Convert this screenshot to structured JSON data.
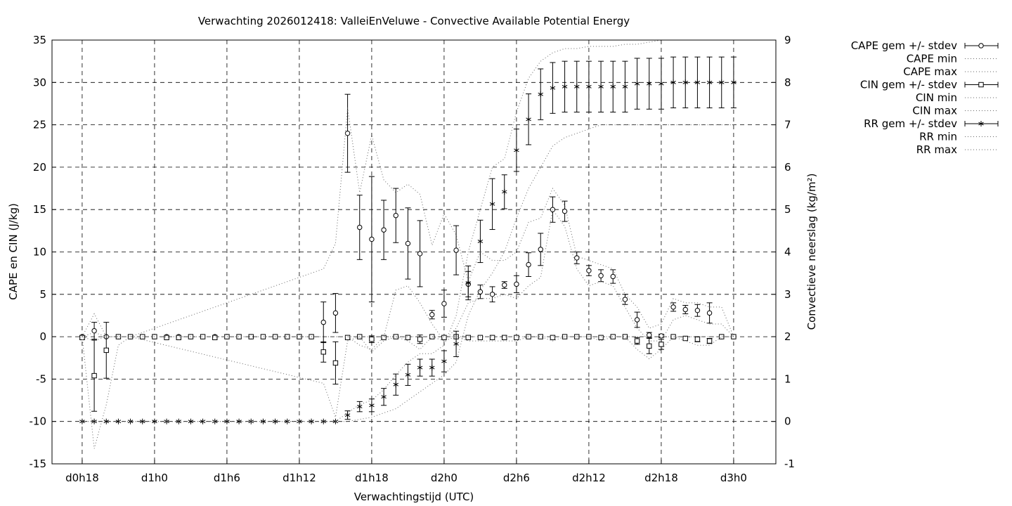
{
  "chart_data": {
    "type": "line",
    "title": "Verwachting 2026012418: ValleiEnVeluwe - Convective Available Potential Energy",
    "xlabel": "Verwachtingstijd (UTC)",
    "ylabel": "CAPE en CIN (J/kg)",
    "y2label": "Convectieve neerslag (kg/m²)",
    "x_ticks": [
      "d0h18",
      "d1h0",
      "d1h6",
      "d1h12",
      "d1h18",
      "d2h0",
      "d2h6",
      "d2h12",
      "d2h18",
      "d3h0"
    ],
    "x_unit": "hours since d0h0",
    "xlim": [
      15.5,
      75.5
    ],
    "ylim": [
      -15,
      35
    ],
    "y2lim": [
      -1,
      9
    ],
    "y_ticks": [
      "-15",
      "-10",
      "-5",
      "0",
      "5",
      "10",
      "15",
      "20",
      "25",
      "30",
      "35"
    ],
    "y2_ticks": [
      "-1",
      "0",
      "1",
      "2",
      "3",
      "4",
      "5",
      "6",
      "7",
      "8",
      "9"
    ],
    "grid": true,
    "legend_position": "outside-right",
    "legend": [
      "CAPE gem +/- stdev",
      "CAPE min",
      "CAPE max",
      "CIN gem +/- stdev",
      "CIN min",
      "CIN max",
      "RR gem +/- stdev",
      "RR min",
      "RR max"
    ],
    "series": [
      {
        "name": "CAPE gem +/- stdev",
        "axis": "y",
        "marker": "circle",
        "x": [
          18,
          19,
          20,
          21,
          22,
          23,
          24,
          25,
          26,
          27,
          28,
          29,
          30,
          31,
          32,
          33,
          34,
          35,
          36,
          37,
          38,
          39,
          40,
          41,
          42,
          43,
          44,
          45,
          46,
          47,
          48,
          49,
          50,
          51,
          52,
          53,
          54,
          55,
          56,
          57,
          58,
          59,
          60,
          61,
          62,
          63,
          64,
          65,
          66,
          67,
          68,
          69,
          70,
          71,
          72
        ],
        "values": [
          0,
          0.7,
          0,
          0,
          0,
          0,
          0,
          0,
          0,
          0,
          0,
          0,
          0,
          0,
          0,
          0,
          0,
          0,
          0,
          0,
          1.7,
          2.8,
          24,
          12.9,
          11.5,
          12.6,
          14.3,
          11,
          9.8,
          2.6,
          3.9,
          10.2,
          6.2,
          5.3,
          5,
          6.1,
          6.2,
          8.5,
          10.3,
          15,
          14.8,
          9.3,
          7.8,
          7.2,
          7.1,
          4.4,
          2,
          0.2,
          0.1,
          3.5,
          3.2,
          3.1,
          2.8,
          0,
          0
        ],
        "err": [
          0,
          1,
          0,
          0,
          0,
          0,
          0,
          0,
          0,
          0,
          0,
          0,
          0,
          0,
          0,
          0,
          0,
          0,
          0,
          0,
          2.4,
          2.3,
          4.6,
          3.8,
          7.4,
          3.5,
          3.2,
          4.2,
          3.9,
          0.5,
          1.6,
          2.9,
          1.5,
          0.8,
          0.9,
          0.4,
          1,
          1.4,
          1.9,
          1.5,
          1.2,
          0.7,
          0.6,
          0.7,
          0.8,
          0.6,
          0.9,
          0.3,
          0.2,
          0.5,
          0.5,
          0.7,
          1.2,
          0,
          0
        ]
      },
      {
        "name": "CIN gem +/- stdev",
        "axis": "y",
        "marker": "square",
        "x": [
          18,
          19,
          20,
          21,
          22,
          23,
          24,
          25,
          26,
          27,
          28,
          29,
          30,
          31,
          32,
          33,
          34,
          35,
          36,
          37,
          38,
          39,
          40,
          41,
          42,
          43,
          44,
          45,
          46,
          47,
          48,
          49,
          50,
          51,
          52,
          53,
          54,
          55,
          56,
          57,
          58,
          59,
          60,
          61,
          62,
          63,
          64,
          65,
          66,
          67,
          68,
          69,
          70,
          71,
          72
        ],
        "values": [
          -0.1,
          -4.6,
          -1.6,
          0,
          0,
          0,
          0,
          -0.1,
          -0.1,
          0,
          0,
          -0.1,
          0,
          0,
          0,
          0,
          0,
          0,
          0,
          0,
          -1.8,
          -3.1,
          -0.1,
          0,
          -0.3,
          -0.1,
          0,
          -0.1,
          -0.3,
          0,
          -0.1,
          0,
          -0.1,
          -0.1,
          -0.1,
          -0.1,
          -0.1,
          0,
          0,
          -0.1,
          0,
          0,
          0,
          -0.1,
          0,
          0,
          -0.5,
          -1.1,
          -0.9,
          0,
          -0.2,
          -0.3,
          -0.5,
          0,
          0
        ],
        "err": [
          0.2,
          4.2,
          3.3,
          0,
          0,
          0,
          0,
          0,
          0,
          0,
          0,
          0,
          0,
          0,
          0,
          0,
          0,
          0,
          0,
          0,
          1.2,
          2.5,
          0,
          0,
          0.4,
          0,
          0,
          0,
          0.5,
          0,
          0,
          0,
          0,
          0,
          0,
          0,
          0,
          0,
          0,
          0,
          0,
          0,
          0,
          0,
          0,
          0,
          0.4,
          0.9,
          0.6,
          0,
          0,
          0.3,
          0.3,
          0,
          0
        ]
      },
      {
        "name": "RR gem +/- stdev",
        "axis": "y2",
        "marker": "star",
        "x": [
          18,
          19,
          20,
          21,
          22,
          23,
          24,
          25,
          26,
          27,
          28,
          29,
          30,
          31,
          32,
          33,
          34,
          35,
          36,
          37,
          38,
          39,
          40,
          41,
          42,
          43,
          44,
          45,
          46,
          47,
          48,
          49,
          50,
          51,
          52,
          53,
          54,
          55,
          56,
          57,
          58,
          59,
          60,
          61,
          62,
          63,
          64,
          65,
          66,
          67,
          68,
          69,
          70,
          71,
          72
        ],
        "values": [
          0,
          0,
          0,
          0,
          0,
          0,
          0,
          0,
          0,
          0,
          0,
          0,
          0,
          0,
          0,
          0,
          0,
          0,
          0,
          0,
          0,
          0,
          0.15,
          0.35,
          0.38,
          0.58,
          0.87,
          1.1,
          1.27,
          1.27,
          1.42,
          1.83,
          3.27,
          4.25,
          5.13,
          5.42,
          6.4,
          7.13,
          7.72,
          7.87,
          7.9,
          7.9,
          7.9,
          7.9,
          7.9,
          7.9,
          7.97,
          7.97,
          7.97,
          8,
          8,
          8,
          8,
          8,
          8
        ],
        "err": [
          0,
          0,
          0,
          0,
          0,
          0,
          0,
          0,
          0,
          0,
          0,
          0,
          0,
          0,
          0,
          0,
          0,
          0,
          0,
          0,
          0,
          0,
          0.1,
          0.12,
          0.15,
          0.2,
          0.25,
          0.25,
          0.2,
          0.2,
          0.25,
          0.3,
          0.4,
          0.5,
          0.6,
          0.4,
          0.5,
          0.6,
          0.6,
          0.6,
          0.6,
          0.6,
          0.6,
          0.6,
          0.6,
          0.6,
          0.6,
          0.6,
          0.6,
          0.6,
          0.6,
          0.6,
          0.6,
          0.6,
          0.6
        ]
      },
      {
        "name": "CAPE max",
        "axis": "y",
        "style": "dotted",
        "x": [
          18,
          19,
          20,
          21,
          22,
          38,
          39,
          40,
          41,
          42,
          43,
          44,
          45,
          46,
          47,
          48,
          49,
          50,
          51,
          52,
          53,
          54,
          55,
          56,
          57,
          58,
          59,
          60,
          61,
          62,
          63,
          64,
          65,
          66,
          67,
          68,
          69,
          70,
          71,
          72
        ],
        "values": [
          0,
          2.7,
          0,
          0,
          0,
          8,
          11,
          27,
          17,
          23.8,
          18.5,
          17,
          18,
          16.8,
          10.8,
          14.5,
          12,
          6.5,
          10,
          9,
          9,
          10,
          13.5,
          14,
          17.5,
          15.5,
          9.5,
          9,
          8.5,
          8,
          5,
          3.5,
          1,
          1.5,
          4.5,
          4,
          4,
          3.5,
          3.5,
          0
        ]
      },
      {
        "name": "CAPE min",
        "axis": "y",
        "style": "dotted",
        "x": [
          18,
          19,
          20,
          21,
          22,
          38,
          39,
          40,
          41,
          42,
          43,
          44,
          45,
          46,
          47,
          48,
          49,
          50,
          51,
          52,
          53,
          54,
          55,
          56,
          57,
          58,
          59,
          60,
          61,
          62,
          63,
          64,
          65,
          66,
          67,
          68,
          69,
          70,
          71,
          72
        ],
        "values": [
          0,
          -0.5,
          0,
          0,
          0,
          0,
          0,
          0,
          -1,
          -1.5,
          0,
          5.5,
          6,
          4,
          1.5,
          -0.5,
          1,
          4,
          4.5,
          4.5,
          5,
          4.5,
          6,
          7,
          15,
          13,
          8,
          6,
          6.5,
          6,
          3.5,
          1,
          -0.5,
          -0.5,
          2,
          2.5,
          2,
          1.5,
          1.5,
          0
        ]
      },
      {
        "name": "CIN min",
        "axis": "y",
        "style": "dotted",
        "x": [
          18,
          19,
          20,
          21,
          22,
          38,
          39,
          40,
          41,
          42,
          43,
          44,
          45,
          46,
          47,
          48,
          49,
          50,
          51,
          52,
          53,
          54,
          55,
          56,
          57,
          58,
          59,
          60,
          61,
          62,
          63,
          64,
          65,
          66,
          67,
          68,
          69,
          70,
          71,
          72
        ],
        "values": [
          0,
          -13.2,
          -8,
          -1,
          0,
          -5.5,
          -9.5,
          -0.5,
          0,
          -1.8,
          -0.5,
          0,
          -0.5,
          -1.5,
          0,
          -0.5,
          0,
          -0.5,
          -0.5,
          -0.5,
          -0.5,
          -0.5,
          0,
          0,
          -0.5,
          0,
          0,
          0,
          -0.5,
          0,
          0,
          -1.5,
          -2.6,
          -1.5,
          0,
          -0.5,
          -1,
          -1,
          0,
          0
        ]
      },
      {
        "name": "CIN max",
        "axis": "y",
        "style": "dotted",
        "x": [
          18,
          19,
          20,
          21,
          22,
          72
        ],
        "values": [
          0,
          0.5,
          0,
          0,
          0,
          0
        ]
      },
      {
        "name": "RR max",
        "axis": "y2",
        "style": "dotted",
        "x": [
          18,
          38,
          39,
          40,
          41,
          42,
          43,
          44,
          45,
          46,
          47,
          48,
          49,
          50,
          51,
          52,
          53,
          54,
          55,
          56,
          57,
          58,
          59,
          60,
          61,
          62,
          63,
          64,
          65,
          66,
          67,
          68,
          69,
          70,
          71,
          72
        ],
        "values": [
          0,
          0,
          0,
          0.2,
          0.4,
          0.5,
          0.75,
          1.1,
          1.4,
          1.6,
          1.6,
          1.8,
          2.5,
          4,
          5,
          6,
          6.2,
          7.3,
          8.1,
          8.5,
          8.7,
          8.8,
          8.8,
          8.85,
          8.85,
          8.85,
          8.9,
          8.9,
          8.95,
          9,
          9,
          9,
          9,
          9,
          9,
          9
        ]
      },
      {
        "name": "RR min",
        "axis": "y2",
        "style": "dotted",
        "x": [
          18,
          38,
          39,
          40,
          41,
          42,
          43,
          44,
          45,
          46,
          47,
          48,
          49,
          50,
          51,
          52,
          53,
          54,
          55,
          56,
          57,
          58,
          59,
          60,
          61,
          62,
          63,
          64,
          65,
          66,
          67,
          68,
          69,
          70,
          71,
          72
        ],
        "values": [
          0,
          0,
          0,
          0,
          0.05,
          0.1,
          0.2,
          0.3,
          0.5,
          0.7,
          0.9,
          1.1,
          1.4,
          2.5,
          3.1,
          3.5,
          4,
          4.8,
          5.5,
          6,
          6.5,
          6.7,
          6.8,
          6.9,
          7,
          7,
          7,
          7,
          7,
          7,
          7,
          7,
          7,
          7,
          7,
          7
        ]
      }
    ]
  }
}
